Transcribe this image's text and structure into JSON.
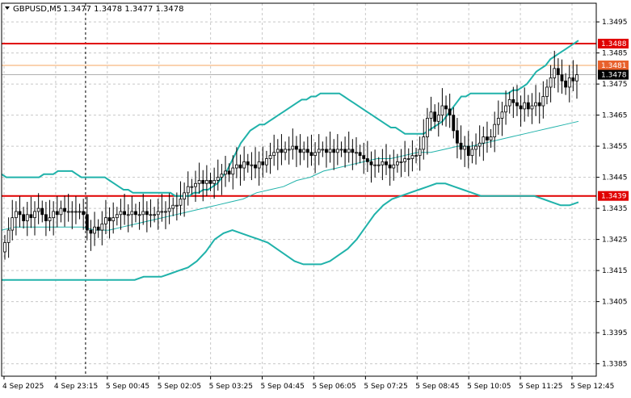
{
  "header": {
    "symbol": "GBPUSD,M5",
    "ohlc": "1.3477 1.3478 1.3477 1.3478"
  },
  "colors": {
    "background": "#ffffff",
    "frame": "#000000",
    "grid": "#c8c8c8",
    "candle": "#000000",
    "bollinger": "#20b2aa",
    "moving_average": "#20b2aa",
    "resistance_line": "#e00000",
    "price_marker_line": "#f4a460",
    "last_price_label_bg": "#000000",
    "last_price_label_text": "#ffffff",
    "level_label_bg": "#e00000",
    "level_label_text": "#ffffff",
    "orange_label_bg": "#e8612c",
    "crosshair": "#000000"
  },
  "chart_data": {
    "type": "candlestick",
    "symbol": "GBPUSD",
    "timeframe": "M5",
    "x_ticks": [
      "4 Sep 2025",
      "4 Sep 23:15",
      "5 Sep 00:45",
      "5 Sep 02:05",
      "5 Sep 03:25",
      "5 Sep 04:45",
      "5 Sep 06:05",
      "5 Sep 07:25",
      "5 Sep 08:45",
      "5 Sep 10:05",
      "5 Sep 11:25",
      "5 Sep 12:45"
    ],
    "y_ticks": [
      "1.3495",
      "1.3485",
      "1.3475",
      "1.3465",
      "1.3455",
      "1.3445",
      "1.3435",
      "1.3425",
      "1.3415",
      "1.3405",
      "1.3395",
      "1.3385"
    ],
    "y_tick_values": [
      1.3495,
      1.3485,
      1.3475,
      1.3465,
      1.3455,
      1.3445,
      1.3435,
      1.3425,
      1.3415,
      1.3405,
      1.3395,
      1.3385
    ],
    "ylim": [
      1.3381,
      1.3501
    ],
    "grid": true,
    "horizontal_levels": [
      {
        "label": "1.3488",
        "value": 1.3488,
        "kind": "resistance"
      },
      {
        "label": "1.3481",
        "value": 1.3481,
        "kind": "marker"
      },
      {
        "label": "1.3439",
        "value": 1.3439,
        "kind": "support"
      }
    ],
    "last_price": {
      "label": "1.3478",
      "value": 1.3478
    },
    "candles_close": [
      1.3424,
      1.3428,
      1.3432,
      1.3434,
      1.3433,
      1.3431,
      1.3433,
      1.3432,
      1.3434,
      1.3435,
      1.3433,
      1.3431,
      1.3432,
      1.3434,
      1.3433,
      1.3435,
      1.3434,
      1.3434,
      1.3434,
      1.3434,
      1.3434,
      1.3433,
      1.3428,
      1.3427,
      1.3429,
      1.3428,
      1.343,
      1.3432,
      1.3431,
      1.3432,
      1.3433,
      1.3434,
      1.3433,
      1.3433,
      1.3434,
      1.3433,
      1.3433,
      1.3434,
      1.3433,
      1.3433,
      1.3433,
      1.3434,
      1.3434,
      1.3434,
      1.3435,
      1.3436,
      1.3436,
      1.3438,
      1.344,
      1.3442,
      1.3442,
      1.3443,
      1.3444,
      1.3443,
      1.3444,
      1.3443,
      1.3444,
      1.3445,
      1.3446,
      1.3447,
      1.3446,
      1.3448,
      1.3449,
      1.3448,
      1.345,
      1.3449,
      1.3449,
      1.3448,
      1.345,
      1.3449,
      1.3451,
      1.3452,
      1.3453,
      1.3454,
      1.3453,
      1.3454,
      1.3454,
      1.3455,
      1.3454,
      1.3453,
      1.3454,
      1.3453,
      1.3452,
      1.3453,
      1.3454,
      1.3454,
      1.3453,
      1.3454,
      1.3453,
      1.3454,
      1.3454,
      1.3453,
      1.3454,
      1.3453,
      1.3453,
      1.3452,
      1.3451,
      1.345,
      1.3449,
      1.3449,
      1.3449,
      1.345,
      1.3449,
      1.3448,
      1.3449,
      1.345,
      1.345,
      1.3451,
      1.3451,
      1.3452,
      1.3452,
      1.3454,
      1.3458,
      1.3464,
      1.3466,
      1.3463,
      1.3465,
      1.3468,
      1.3467,
      1.3465,
      1.346,
      1.3456,
      1.3454,
      1.3455,
      1.3452,
      1.3454,
      1.3455,
      1.3456,
      1.3458,
      1.3457,
      1.3458,
      1.3462,
      1.3464,
      1.3466,
      1.3468,
      1.347,
      1.3469,
      1.3468,
      1.3467,
      1.3469,
      1.3467,
      1.3468,
      1.3469,
      1.3468,
      1.3471,
      1.3474,
      1.3477,
      1.348,
      1.3478,
      1.3476,
      1.3474,
      1.3477,
      1.3476,
      1.3478
    ],
    "bollinger_upper": [
      1.3446,
      1.3445,
      1.3445,
      1.3445,
      1.3445,
      1.3445,
      1.3445,
      1.3445,
      1.3445,
      1.3446,
      1.3446,
      1.3446,
      1.3447,
      1.3447,
      1.3447,
      1.3447,
      1.3446,
      1.3445,
      1.3445,
      1.3445,
      1.3445,
      1.3445,
      1.3445,
      1.3444,
      1.3443,
      1.3442,
      1.3441,
      1.3441,
      1.344,
      1.344,
      1.344,
      1.344,
      1.344,
      1.344,
      1.344,
      1.344,
      1.344,
      1.3439,
      1.3439,
      1.3439,
      1.3439,
      1.344,
      1.344,
      1.3441,
      1.3441,
      1.3442,
      1.3443,
      1.3445,
      1.3447,
      1.345,
      1.3453,
      1.3456,
      1.3458,
      1.346,
      1.3461,
      1.3462,
      1.3462,
      1.3463,
      1.3464,
      1.3465,
      1.3466,
      1.3467,
      1.3468,
      1.3469,
      1.347,
      1.347,
      1.3471,
      1.3471,
      1.3472,
      1.3472,
      1.3472,
      1.3472,
      1.3472,
      1.3471,
      1.347,
      1.3469,
      1.3468,
      1.3467,
      1.3466,
      1.3465,
      1.3464,
      1.3463,
      1.3462,
      1.3461,
      1.3461,
      1.346,
      1.3459,
      1.3459,
      1.3459,
      1.3459,
      1.3459,
      1.346,
      1.3461,
      1.3462,
      1.3463,
      1.3465,
      1.3467,
      1.3469,
      1.3471,
      1.3471,
      1.3472,
      1.3472,
      1.3472,
      1.3472,
      1.3472,
      1.3472,
      1.3472,
      1.3472,
      1.3472,
      1.3473,
      1.3473,
      1.3474,
      1.3475,
      1.3477,
      1.3479,
      1.348,
      1.3481,
      1.3483,
      1.3484,
      1.3485,
      1.3486,
      1.3487,
      1.3488,
      1.3489
    ],
    "bollinger_lower": [
      1.3412,
      1.3412,
      1.3412,
      1.3412,
      1.3412,
      1.3412,
      1.3412,
      1.3412,
      1.3412,
      1.3412,
      1.3412,
      1.3412,
      1.3412,
      1.3412,
      1.3412,
      1.3412,
      1.3413,
      1.3413,
      1.3413,
      1.3414,
      1.3415,
      1.3416,
      1.3418,
      1.3421,
      1.3425,
      1.3427,
      1.3428,
      1.3427,
      1.3426,
      1.3425,
      1.3424,
      1.3422,
      1.342,
      1.3418,
      1.3417,
      1.3417,
      1.3417,
      1.3418,
      1.342,
      1.3422,
      1.3425,
      1.3429,
      1.3433,
      1.3436,
      1.3438,
      1.3439,
      1.344,
      1.3441,
      1.3442,
      1.3443,
      1.3443,
      1.3442,
      1.3441,
      1.344,
      1.3439,
      1.3439,
      1.3439,
      1.3439,
      1.3439,
      1.3439,
      1.3439,
      1.3438,
      1.3437,
      1.3436,
      1.3436,
      1.3437
    ],
    "moving_average": [
      1.3428,
      1.3429,
      1.3429,
      1.3429,
      1.3429,
      1.3429,
      1.3429,
      1.3428,
      1.3428,
      1.3429,
      1.343,
      1.3431,
      1.3432,
      1.3433,
      1.3434,
      1.3435,
      1.3436,
      1.3437,
      1.3438,
      1.344,
      1.3441,
      1.3442,
      1.3444,
      1.3445,
      1.3447,
      1.3448,
      1.3449,
      1.345,
      1.3451,
      1.3451,
      1.3452,
      1.3453,
      1.3453,
      1.3454,
      1.3455,
      1.3455,
      1.3456,
      1.3457,
      1.3458,
      1.3459,
      1.346,
      1.3461,
      1.3462,
      1.3463
    ]
  }
}
